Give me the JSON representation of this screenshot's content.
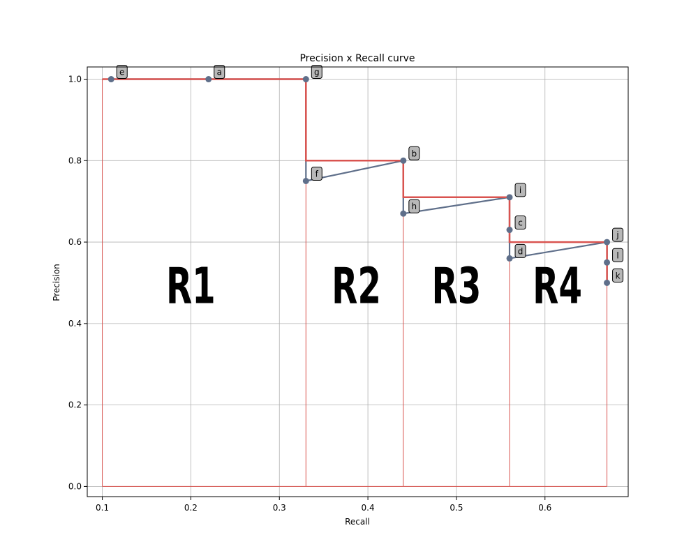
{
  "chart_data": {
    "type": "line",
    "title": "Precision x Recall curve",
    "xlabel": "Recall",
    "ylabel": "Precision",
    "xlim": [
      0.083,
      0.694
    ],
    "ylim": [
      -0.025,
      1.03
    ],
    "xticks": [
      "0.1",
      "0.2",
      "0.3",
      "0.4",
      "0.5",
      "0.6"
    ],
    "xtick_values": [
      0.1,
      0.2,
      0.3,
      0.4,
      0.5,
      0.6
    ],
    "yticks": [
      "0.0",
      "0.2",
      "0.4",
      "0.6",
      "0.8",
      "1.0"
    ],
    "ytick_values": [
      0.0,
      0.2,
      0.4,
      0.6,
      0.8,
      1.0
    ],
    "grid": true,
    "colors": {
      "curve": "#5f6f8a",
      "interpolated": "#d9534f",
      "label_box": "#b8b8b8"
    },
    "points": [
      {
        "label": "e",
        "recall": 0.11,
        "precision": 1.0
      },
      {
        "label": "a",
        "recall": 0.22,
        "precision": 1.0
      },
      {
        "label": "g",
        "recall": 0.33,
        "precision": 1.0
      },
      {
        "label": "f",
        "recall": 0.33,
        "precision": 0.75
      },
      {
        "label": "b",
        "recall": 0.44,
        "precision": 0.8
      },
      {
        "label": "h",
        "recall": 0.44,
        "precision": 0.67
      },
      {
        "label": "i",
        "recall": 0.56,
        "precision": 0.71
      },
      {
        "label": "c",
        "recall": 0.56,
        "precision": 0.63
      },
      {
        "label": "d",
        "recall": 0.56,
        "precision": 0.56
      },
      {
        "label": "j",
        "recall": 0.67,
        "precision": 0.6
      },
      {
        "label": "l",
        "recall": 0.67,
        "precision": 0.55
      },
      {
        "label": "k",
        "recall": 0.67,
        "precision": 0.5
      }
    ],
    "interpolated_curve": [
      [
        0.1,
        0.0
      ],
      [
        0.1,
        1.0
      ],
      [
        0.33,
        1.0
      ],
      [
        0.33,
        0.8
      ],
      [
        0.44,
        0.8
      ],
      [
        0.44,
        0.71
      ],
      [
        0.56,
        0.71
      ],
      [
        0.56,
        0.6
      ],
      [
        0.67,
        0.6
      ],
      [
        0.67,
        0.5
      ]
    ],
    "region_boundaries": [
      0.1,
      0.33,
      0.44,
      0.56,
      0.67
    ],
    "regions": [
      {
        "label": "R1",
        "x": 0.2,
        "y": 0.45
      },
      {
        "label": "R2",
        "x": 0.387,
        "y": 0.45
      },
      {
        "label": "R3",
        "x": 0.5,
        "y": 0.45
      },
      {
        "label": "R4",
        "x": 0.614,
        "y": 0.45
      }
    ]
  }
}
